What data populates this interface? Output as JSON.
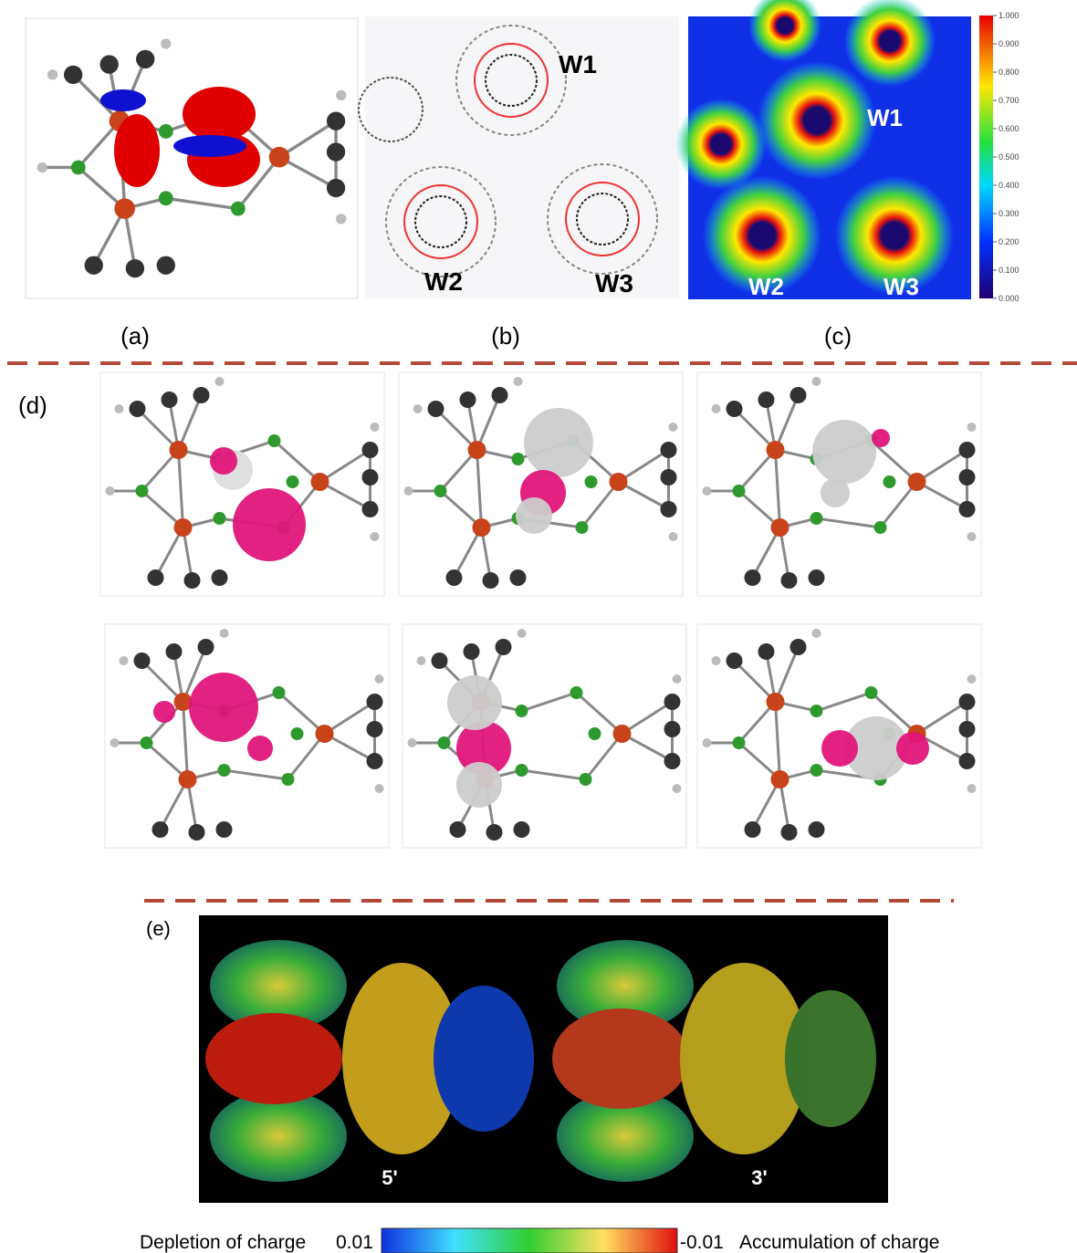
{
  "panels": {
    "a": {
      "label": "(a)"
    },
    "b": {
      "label": "(b)",
      "centers": [
        "W1",
        "W2",
        "W3"
      ]
    },
    "c": {
      "label": "(c)",
      "centers": [
        "W1",
        "W2",
        "W3"
      ],
      "colorbar": [
        "1.000",
        "0.900",
        "0.800",
        "0.700",
        "0.600",
        "0.500",
        "0.400",
        "0.300",
        "0.200",
        "0.100",
        "0.000"
      ]
    },
    "d": {
      "label": "(d)"
    },
    "e": {
      "label": "(e)",
      "structures": [
        "5'",
        "3'"
      ],
      "legend": {
        "left_text": "Depletion of charge",
        "left_value": "0.01",
        "right_value": "-0.01",
        "right_text": "Accumulation of charge"
      }
    }
  }
}
